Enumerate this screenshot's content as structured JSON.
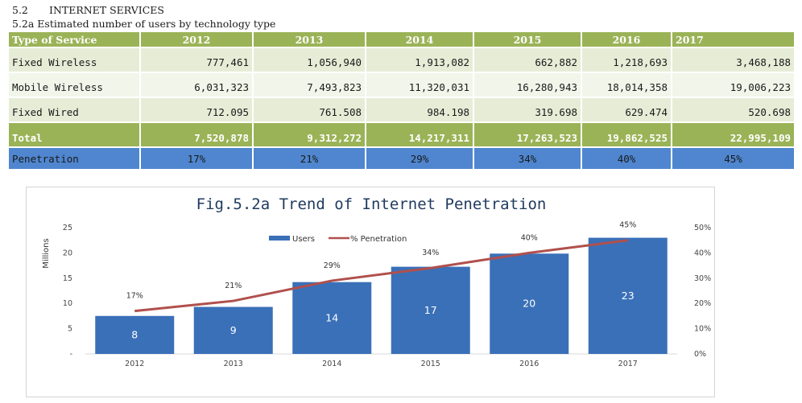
{
  "heading": {
    "section_number": "5.2",
    "section_title": "INTERNET SERVICES",
    "table_caption": "5.2a Estimated number of users by technology type"
  },
  "table": {
    "headers": [
      "Type of Service",
      "2012",
      "2013",
      "2014",
      "2015",
      "2016",
      "2017"
    ],
    "rows": [
      {
        "label": "Fixed Wireless",
        "values": [
          "777,461",
          "1,056,940",
          "1,913,082",
          "662,882",
          "1,218,693",
          "3,468,188"
        ]
      },
      {
        "label": "Mobile Wireless",
        "values": [
          "6,031,323",
          "7,493,823",
          "11,320,031",
          "16,280,943",
          "18,014,358",
          "19,006,223"
        ]
      },
      {
        "label": "Fixed Wired",
        "values": [
          "712.095",
          "761.508",
          "984.198",
          "319.698",
          "629.474",
          "520.698"
        ]
      }
    ],
    "total": {
      "label": "Total",
      "values": [
        "7,520,878",
        "9,312,272",
        "14,217,311",
        "17,263,523",
        "19,862,525",
        "22,995,109"
      ]
    },
    "penetration": {
      "label": "Penetration",
      "values": [
        "17%",
        "21%",
        "29%",
        "34%",
        "40%",
        "45%"
      ]
    }
  },
  "colors": {
    "header_green": "#9bb357",
    "row_light": "#e7ecd7",
    "penetration_blue": "#4f86cf",
    "bar_blue": "#3a70b8",
    "line_red": "#b0504c"
  },
  "chart_data": {
    "type": "bar",
    "title": "Fig.5.2a Trend of  Internet Penetration",
    "categories": [
      "2012",
      "2013",
      "2014",
      "2015",
      "2016",
      "2017"
    ],
    "ylabel": "Millions",
    "ylim": [
      0,
      25
    ],
    "y_ticks": [
      "-",
      "5",
      "10",
      "15",
      "20",
      "25"
    ],
    "y2lim": [
      0,
      50
    ],
    "y2_ticks": [
      "0%",
      "10%",
      "20%",
      "30%",
      "40%",
      "50%"
    ],
    "legend_position": "top-center",
    "series": [
      {
        "name": "Users",
        "kind": "bar",
        "values": [
          7.52,
          9.31,
          14.22,
          17.26,
          19.86,
          23.0
        ],
        "labels": [
          "8",
          "9",
          "14",
          "17",
          "20",
          "23"
        ]
      },
      {
        "name": "% Penetration",
        "kind": "line",
        "axis": "right",
        "values": [
          17,
          21,
          29,
          34,
          40,
          45
        ],
        "labels": [
          "17%",
          "21%",
          "29%",
          "34%",
          "40%",
          "45%"
        ]
      }
    ]
  }
}
